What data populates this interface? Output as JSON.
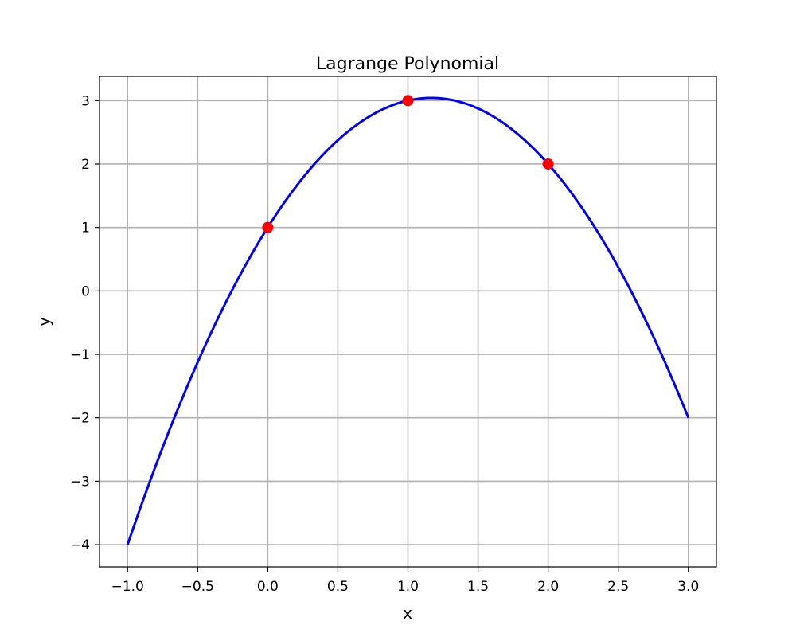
{
  "chart_data": {
    "type": "line",
    "title": "Lagrange Polynomial",
    "xlabel": "x",
    "ylabel": "y",
    "xlim": [
      -1.2,
      3.2
    ],
    "ylim": [
      -4.35,
      3.38
    ],
    "grid": true,
    "x_ticks": [
      -1.0,
      -0.5,
      0.0,
      0.5,
      1.0,
      1.5,
      2.0,
      2.5,
      3.0
    ],
    "x_tick_labels": [
      "−1.0",
      "−0.5",
      "0.0",
      "0.5",
      "1.0",
      "1.5",
      "2.0",
      "2.5",
      "3.0"
    ],
    "y_ticks": [
      -4,
      -3,
      -2,
      -1,
      0,
      1,
      2,
      3
    ],
    "y_tick_labels": [
      "−4",
      "−3",
      "−2",
      "−1",
      "0",
      "1",
      "2",
      "3"
    ],
    "series": [
      {
        "kind": "line",
        "color": "#0000ff",
        "x": [
          -1.0,
          -0.8,
          -0.6,
          -0.4,
          -0.2,
          0.0,
          0.2,
          0.4,
          0.6,
          0.8,
          1.0,
          1.2,
          1.4,
          1.6,
          1.8,
          2.0,
          2.2,
          2.4,
          2.6,
          2.8,
          3.0
        ],
        "y": [
          -4.0,
          -2.84,
          -1.76,
          -0.76,
          0.16,
          1.0,
          1.76,
          2.44,
          3.04,
          2.76,
          3.0,
          3.04,
          2.96,
          2.76,
          2.44,
          2.0,
          1.44,
          0.76,
          -0.04,
          -0.96,
          -2.0
        ]
      },
      {
        "kind": "points",
        "color": "#ff0000",
        "x": [
          0,
          1,
          2
        ],
        "y": [
          1,
          3,
          2
        ]
      }
    ]
  }
}
